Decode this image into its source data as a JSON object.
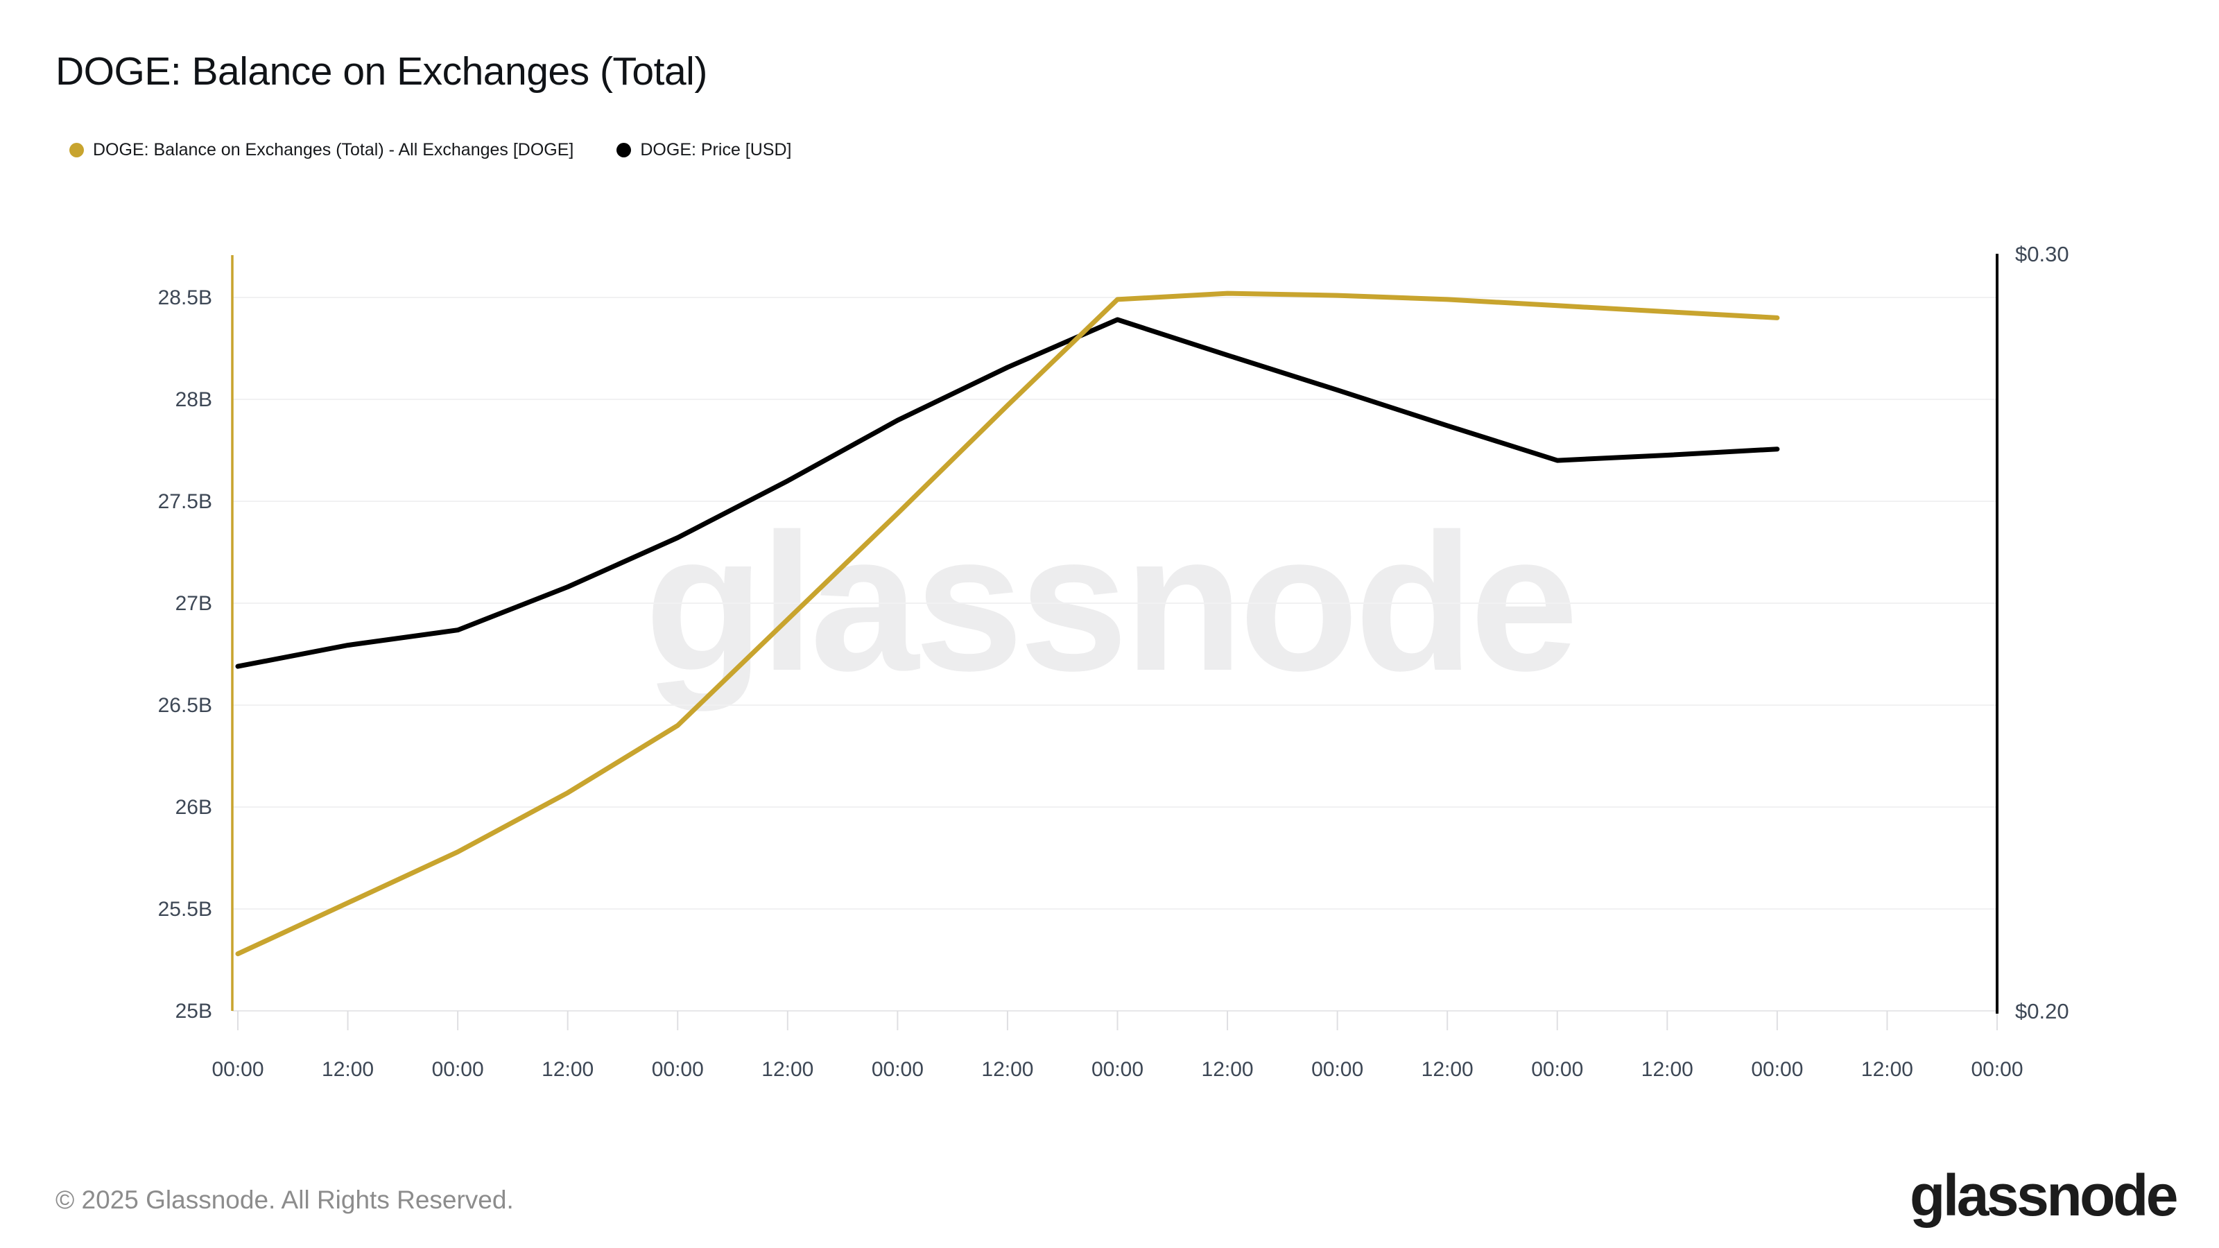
{
  "page": {
    "title": "DOGE: Balance on Exchanges (Total)"
  },
  "legend": {
    "items": [
      {
        "label": "DOGE: Balance on Exchanges (Total) - All Exchanges [DOGE]",
        "color": "#C8A42E"
      },
      {
        "label": "DOGE: Price [USD]",
        "color": "#000000"
      }
    ]
  },
  "chart_data": {
    "type": "line",
    "title": "DOGE: Balance on Exchanges (Total)",
    "x_tick_labels": [
      "00:00",
      "12:00",
      "00:00",
      "12:00",
      "00:00",
      "12:00",
      "00:00",
      "12:00",
      "00:00",
      "12:00",
      "00:00",
      "12:00",
      "00:00",
      "12:00",
      "00:00",
      "12:00",
      "00:00"
    ],
    "x_interval_hours": 12,
    "series": [
      {
        "name": "DOGE: Balance on Exchanges (Total) - All Exchanges [DOGE]",
        "axis": "left",
        "color": "#C8A42E",
        "unit": "DOGE (billions)",
        "values": [
          25.28,
          25.53,
          25.78,
          26.07,
          26.4,
          26.92,
          27.44,
          27.97,
          28.49,
          28.52,
          28.51,
          28.49,
          28.46,
          28.43,
          28.4
        ]
      },
      {
        "name": "DOGE: Price [USD]",
        "axis": "right",
        "color": "#000000",
        "unit": "USD",
        "values": [
          0.2455,
          0.2483,
          0.2503,
          0.256,
          0.2625,
          0.27,
          0.278,
          0.285,
          0.2913,
          0.2866,
          0.282,
          0.2773,
          0.2727,
          0.2734,
          0.2742
        ]
      }
    ],
    "left_axis": {
      "min": 25,
      "max": 28.5,
      "tick_step": 0.5,
      "tick_labels": [
        "25B",
        "25.5B",
        "26B",
        "26.5B",
        "27B",
        "27.5B",
        "28B",
        "28.5B"
      ],
      "color": "#C8A42E",
      "label_color": "#3d4755"
    },
    "right_axis": {
      "min": 0.2,
      "max": 0.3,
      "labels": [
        {
          "text": "$0.30",
          "value": 0.3
        },
        {
          "text": "$0.20",
          "value": 0.2
        }
      ],
      "color": "#000000",
      "label_color": "#3d4755"
    },
    "grid": {
      "show": true,
      "color": "#f1f1f2",
      "baseline_color": "#e7e7e9",
      "tick_color": "#dfdfe2"
    },
    "legend_position": "top-left"
  },
  "watermark": {
    "text": "glassnode"
  },
  "footer": {
    "copyright": "© 2025 Glassnode. All Rights Reserved.",
    "brand": "glassnode"
  }
}
